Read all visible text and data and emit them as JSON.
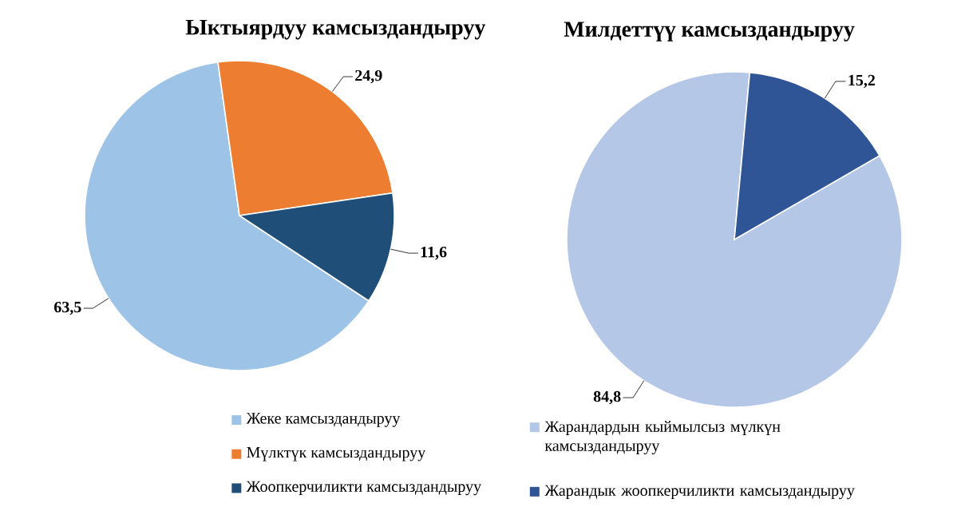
{
  "chart_data": [
    {
      "type": "pie",
      "title": "Ыктыярдуу   камсыздандыруу",
      "categories": [
        "Жеке камсыздандыруу",
        "Мүлктүк камсыздандыруу",
        "Жоопкерчиликти камсыздандыруу"
      ],
      "values": [
        63.5,
        24.9,
        11.6
      ],
      "colors": [
        "#9dc3e6",
        "#ed7d31",
        "#1f4e79"
      ],
      "value_labels": [
        "63,5",
        "24,9",
        "11,6"
      ],
      "legend": "bottom"
    },
    {
      "type": "pie",
      "title": "Милдеттүү   камсыздандыруу",
      "categories": [
        "Жарандардын кыймылсыз мүлкүн камсыздандыруу",
        "Жарандык жоопкерчиликти камсыздандыруу"
      ],
      "values": [
        84.8,
        15.2
      ],
      "colors": [
        "#b4c7e7",
        "#2f5597"
      ],
      "value_labels": [
        "84,8",
        "15,2"
      ],
      "legend": "bottom"
    }
  ]
}
